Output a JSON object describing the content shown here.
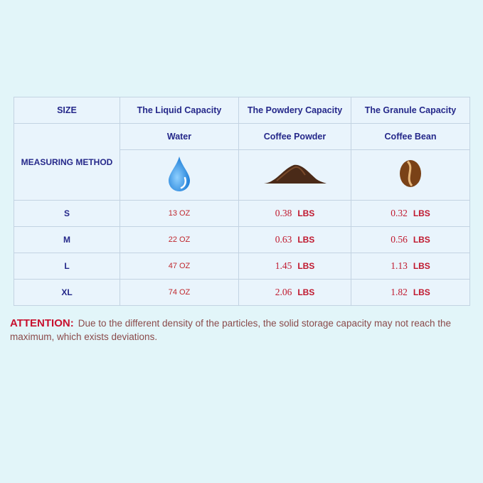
{
  "table": {
    "headers": [
      "SIZE",
      "The Liquid Capacity",
      "The Powdery Capacity",
      "The  Granule Capacity"
    ],
    "method_label": "MEASURING METHOD",
    "materials": [
      {
        "name": "Water",
        "icon": "water-drop-icon"
      },
      {
        "name": "Coffee Powder",
        "icon": "coffee-powder-icon"
      },
      {
        "name": "Coffee Bean",
        "icon": "coffee-bean-icon"
      }
    ],
    "rows": [
      {
        "size": "S",
        "liquid": "13 OZ",
        "powder": "0.38",
        "granule": "0.32"
      },
      {
        "size": "M",
        "liquid": "22 OZ",
        "powder": "0.63",
        "granule": "0.56"
      },
      {
        "size": "L",
        "liquid": "47 OZ",
        "powder": "1.45",
        "granule": "1.13"
      },
      {
        "size": "XL",
        "liquid": "74 OZ",
        "powder": "2.06",
        "granule": "1.82"
      }
    ],
    "unit": "LBS"
  },
  "note": {
    "label": "ATTENTION:",
    "text": "Due to the different density of the particles, the solid storage capacity may not reach the maximum, which exists deviations."
  },
  "colors": {
    "background": "#e2f5f9",
    "header_text": "#25288a",
    "value_text": "#c0182e",
    "attention": "#c8102e"
  }
}
